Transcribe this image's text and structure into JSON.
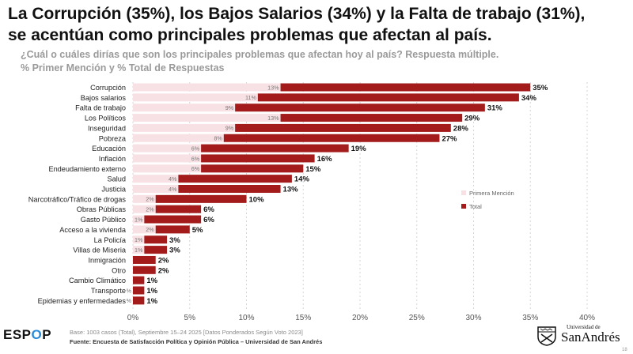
{
  "header": {
    "title_line1": "La Corrupción (35%), los Bajos Salarios (34%) y la Falta de trabajo (31%),",
    "title_line2": "se acentúan como principales problemas que afectan al país.",
    "subtitle_line1": "¿Cuál o cuáles dirías que son los principales problemas que afectan hoy al país? Respuesta múltiple.",
    "subtitle_line2": "% Primer Mención y % Total de Respuestas"
  },
  "chart_data": {
    "type": "bar",
    "orientation": "horizontal",
    "categories": [
      "Corrupción",
      "Bajos salarios",
      "Falta de trabajo",
      "Los Políticos",
      "Inseguridad",
      "Pobreza",
      "Educación",
      "Inflación",
      "Endeudamiento externo",
      "Salud",
      "Justicia",
      "Narcotráfico/Tráfico de drogas",
      "Obras Públicas",
      "Gasto Público",
      "Acceso a la vivienda",
      "La Policía",
      "Villas de Miseria",
      "Inmigración",
      "Otro",
      "Cambio Climático",
      "Transporte",
      "Epidemias y enfermedades"
    ],
    "series": [
      {
        "name": "Primera Mención",
        "color": "#f8e1e4",
        "values": [
          13,
          11,
          9,
          13,
          9,
          8,
          6,
          6,
          6,
          4,
          4,
          2,
          2,
          1,
          2,
          1,
          1,
          0,
          0,
          0,
          0,
          0
        ],
        "labels": [
          "13%",
          "11%",
          "9%",
          "13%",
          "9%",
          "8%",
          "6%",
          "6%",
          "6%",
          "4%",
          "4%",
          "2%",
          "2%",
          "1%",
          "2%",
          "1%",
          "1%",
          "",
          "",
          "",
          "%",
          "%"
        ]
      },
      {
        "name": "Total",
        "color": "#a31b1b",
        "values": [
          35,
          34,
          31,
          29,
          28,
          27,
          19,
          16,
          15,
          14,
          13,
          10,
          6,
          6,
          5,
          3,
          3,
          2,
          2,
          1,
          1,
          1
        ],
        "labels": [
          "35%",
          "34%",
          "31%",
          "29%",
          "28%",
          "27%",
          "19%",
          "16%",
          "15%",
          "14%",
          "13%",
          "10%",
          "6%",
          "6%",
          "5%",
          "3%",
          "3%",
          "2%",
          "2%",
          "1%",
          "1%",
          "1%"
        ]
      }
    ],
    "xlim": [
      0,
      40
    ],
    "xticks": [
      0,
      5,
      10,
      15,
      20,
      25,
      30,
      35,
      40
    ],
    "xtick_labels": [
      "0%",
      "5%",
      "10%",
      "15%",
      "20%",
      "25%",
      "30%",
      "35%",
      "40%"
    ],
    "grid": "vertical dashed",
    "legend": "right"
  },
  "footer": {
    "logo_text": "ESP",
    "logo_accent": "O",
    "logo_end": "P",
    "footnote": "Base: 1003 casos (Total), Septiembre 15–24 2025 [Datos Ponderados Según Voto 2023]",
    "source": "Fuente: Encuesta de Satisfacción Política y Opinión Pública – Universidad de San Andrés",
    "university_small": "Universidad de",
    "university_name": "SanAndrés",
    "page_number": "18"
  }
}
